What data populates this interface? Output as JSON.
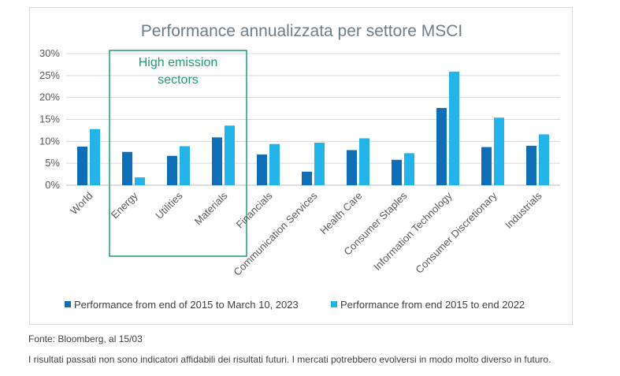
{
  "chart_data": {
    "type": "bar",
    "title": "Performance annualizzata per settore MSCI",
    "categories": [
      "World",
      "Energy",
      "Utilities",
      "Materials",
      "Financials",
      "Communication Services",
      "Health Care",
      "Consumer Staples",
      "Information Technology",
      "Consumer Discretionary",
      "Industrials"
    ],
    "series": [
      {
        "name": "Performance from end of 2015 to March 10, 2023",
        "color": "#0e6eb8",
        "values": [
          8.8,
          7.6,
          6.7,
          10.9,
          7.0,
          3.1,
          8.0,
          5.8,
          17.6,
          8.7,
          9.0
        ]
      },
      {
        "name": "Performance from end 2015 to end 2022",
        "color": "#24b4ea",
        "values": [
          12.8,
          1.8,
          8.9,
          13.6,
          9.4,
          9.7,
          10.7,
          7.3,
          25.9,
          15.4,
          11.6
        ]
      }
    ],
    "ylim": [
      0,
      30
    ],
    "yticks": [
      "0%",
      "5%",
      "10%",
      "15%",
      "20%",
      "25%",
      "30%"
    ],
    "ytick_values": [
      0,
      5,
      10,
      15,
      20,
      25,
      30
    ],
    "grid": true,
    "legend_position": "bottom",
    "annotation": {
      "text_line1": "High emission",
      "text_line2": "sectors",
      "color": "#1f9c71",
      "categories": [
        "Energy",
        "Utilities",
        "Materials"
      ]
    }
  },
  "footer": {
    "source": "Fonte: Bloomberg, al 15/03",
    "disclaimer": "I risultati passati non sono indicatori affidabili dei risultati futuri. I mercati potrebbero evolversi in modo molto diverso in futuro."
  }
}
